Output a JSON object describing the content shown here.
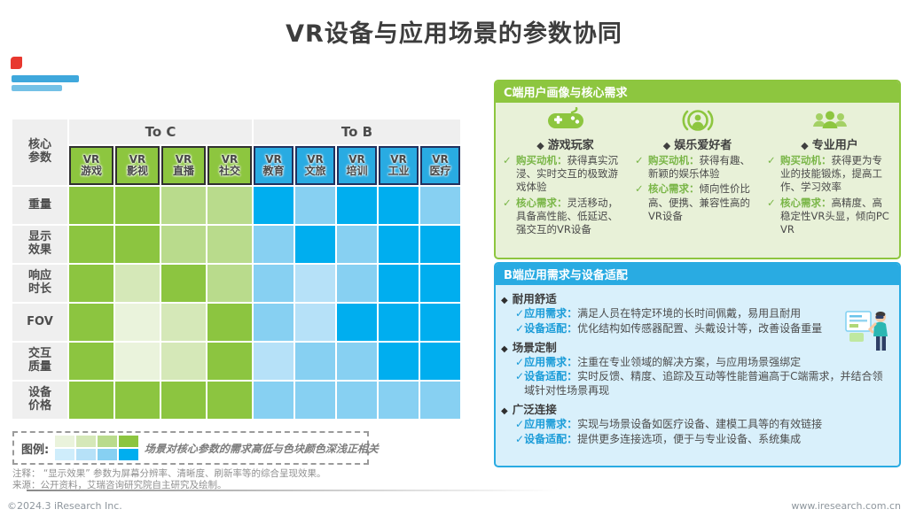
{
  "title": "VR设备与应用场景的参数协同",
  "matrix": {
    "corner_label": "核心\n参数",
    "row_labels": [
      "重量",
      "显示\n效果",
      "响应\n时长",
      "FOV",
      "交互\n质量",
      "设备\n价格"
    ],
    "to_c": {
      "group_label": "To C",
      "columns": [
        {
          "top": "VR",
          "bottom": "游戏"
        },
        {
          "top": "VR",
          "bottom": "影视"
        },
        {
          "top": "VR",
          "bottom": "直播"
        },
        {
          "top": "VR",
          "bottom": "社交"
        }
      ],
      "levels": [
        [
          3,
          3,
          2,
          2
        ],
        [
          3,
          3,
          2,
          2
        ],
        [
          3,
          1,
          3,
          2
        ],
        [
          3,
          0,
          1,
          3
        ],
        [
          3,
          0,
          1,
          3
        ],
        [
          3,
          3,
          3,
          3
        ]
      ],
      "palette": [
        "#eaf3dc",
        "#d5e8b8",
        "#b9db8c",
        "#8cc540"
      ]
    },
    "to_b": {
      "group_label": "To B",
      "columns": [
        {
          "top": "VR",
          "bottom": "教育"
        },
        {
          "top": "VR",
          "bottom": "文旅"
        },
        {
          "top": "VR",
          "bottom": "培训"
        },
        {
          "top": "VR",
          "bottom": "工业"
        },
        {
          "top": "VR",
          "bottom": "医疗"
        }
      ],
      "levels": [
        [
          3,
          2,
          3,
          3,
          2
        ],
        [
          2,
          3,
          2,
          3,
          3
        ],
        [
          2,
          1,
          2,
          3,
          3
        ],
        [
          2,
          1,
          3,
          3,
          3
        ],
        [
          1,
          2,
          2,
          3,
          3
        ],
        [
          2,
          2,
          2,
          2,
          2
        ]
      ],
      "palette": [
        "#cfedfb",
        "#b6e1f8",
        "#87d0f2",
        "#00aeef"
      ]
    }
  },
  "chart_data": {
    "type": "heatmap",
    "title": "VR设备与应用场景的参数协同",
    "rows": [
      "重量",
      "显示效果",
      "响应时长",
      "FOV",
      "交互质量",
      "设备价格"
    ],
    "column_groups": [
      {
        "group": "To C",
        "columns": [
          "VR游戏",
          "VR影视",
          "VR直播",
          "VR社交"
        ]
      },
      {
        "group": "To B",
        "columns": [
          "VR教育",
          "VR文旅",
          "VR培训",
          "VR工业",
          "VR医疗"
        ]
      }
    ],
    "values_note": "需求强度等级 0(最低)-3(最高)，与色块颜色深浅正相关",
    "values": [
      [
        3,
        3,
        2,
        2,
        3,
        2,
        3,
        3,
        2
      ],
      [
        3,
        3,
        2,
        2,
        2,
        3,
        2,
        3,
        3
      ],
      [
        3,
        1,
        3,
        2,
        2,
        1,
        2,
        3,
        3
      ],
      [
        3,
        0,
        1,
        3,
        2,
        1,
        3,
        3,
        3
      ],
      [
        3,
        0,
        1,
        3,
        1,
        2,
        2,
        3,
        3
      ],
      [
        3,
        3,
        3,
        3,
        2,
        2,
        2,
        2,
        2
      ]
    ]
  },
  "legend": {
    "label": "图例:",
    "green_scale": [
      "#eaf3dc",
      "#d5e8b8",
      "#b9db8c",
      "#8cc540"
    ],
    "blue_scale": [
      "#cfedfb",
      "#b6e1f8",
      "#87d0f2",
      "#00aeef"
    ],
    "text": "场景对核心参数的需求高低与色块颜色深浅正相关"
  },
  "notes": {
    "annotation": "注释：  “显示效果” 参数为屏幕分辨率、清晰度、刷新率等的综合呈现效果。",
    "source": "来源：公开资料，艾瑞咨询研究院自主研究及绘制。"
  },
  "footer": {
    "copyright": "©2024.3 iResearch Inc.",
    "website": "www.iresearch.com.cn"
  },
  "c_panel": {
    "title": "C端用户画像与核心需求",
    "diamond": "◆",
    "check": "✓",
    "motive_label": "购买动机：",
    "need_label": "核心需求：",
    "personas": [
      {
        "name": "游戏玩家",
        "motive": "获得真实沉浸、实时交互的极致游戏体验",
        "need": "灵活移动，具备高性能、低延迟、强交互的VR设备"
      },
      {
        "name": "娱乐爱好者",
        "motive": "获得有趣、新颖的娱乐体验",
        "need": "倾向性价比高、便携、兼容性高的VR设备"
      },
      {
        "name": "专业用户",
        "motive": "获得更为专业的技能锻炼，提高工作、学习效率",
        "need": "高精度、高稳定性VR头显，倾向PC VR"
      }
    ]
  },
  "b_panel": {
    "title": "B端应用需求与设备适配",
    "diamond": "◆",
    "check": "✓",
    "demand_label": "应用需求：",
    "adapt_label": "设备适配：",
    "sections": [
      {
        "name": "耐用舒适",
        "demand": "满足人员在特定环境的长时间佩戴，易用且耐用",
        "adapt": "优化结构如传感器配置、头戴设计等，改善设备重量"
      },
      {
        "name": "场景定制",
        "demand": "注重在专业领域的解决方案，与应用场景强绑定",
        "adapt": "实时反馈、精度、追踪及互动等性能普遍高于C端需求，并结合领域针对性场景再现"
      },
      {
        "name": "广泛连接",
        "demand": "实现与场景设备如医疗设备、建模工具等的有效链接",
        "adapt": "提供更多连接选项，便于与专业设备、系统集成"
      }
    ]
  },
  "colors": {
    "green_accent": "#8dc63f",
    "blue_accent": "#29abe2",
    "green_dark_cell": "#8cc540",
    "blue_dark_cell": "#00aeef",
    "panel_green_bg": "#e8f1d8",
    "panel_blue_bg": "#d9f0fb"
  }
}
